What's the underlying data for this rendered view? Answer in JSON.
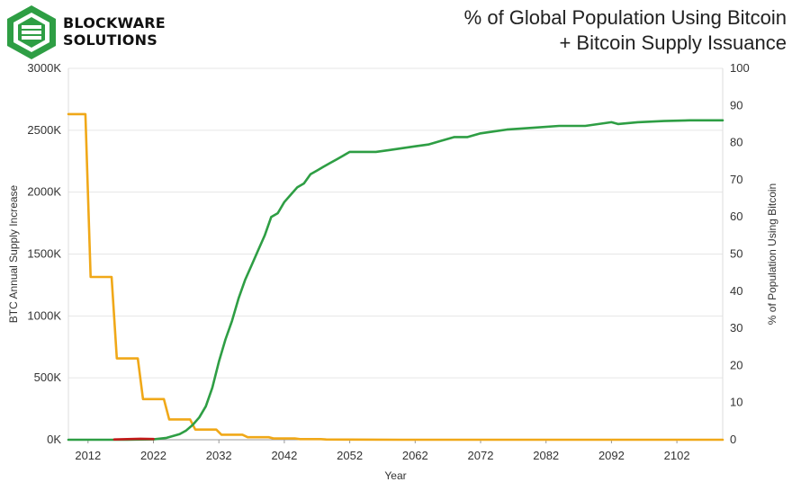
{
  "brand": {
    "line1": "BLOCKWARE",
    "line2": "SOLUTIONS",
    "mark_color": "#2e9e44"
  },
  "header": {
    "title_line1": "% of Global Population Using Bitcoin",
    "title_line2": "+ Bitcoin Supply Issuance"
  },
  "chart_data": {
    "type": "line",
    "title": "% of Global Population Using Bitcoin + Bitcoin Supply Issuance",
    "xlabel": "Year",
    "ylabel_left": "BTC Annual Supply Increase",
    "ylabel_right": "% of Population Using Bitcoin",
    "xlim": [
      2009,
      2109
    ],
    "ylim_left": [
      0,
      3000
    ],
    "ylim_right": [
      0,
      100
    ],
    "x_ticks": [
      "2012",
      "2022",
      "2032",
      "2042",
      "2052",
      "2062",
      "2072",
      "2082",
      "2092",
      "2102"
    ],
    "y_left_ticks": [
      "0K",
      "500K",
      "1000K",
      "1500K",
      "2000K",
      "2500K",
      "3000K"
    ],
    "y_right_ticks": [
      "0",
      "10",
      "20",
      "30",
      "40",
      "50",
      "60",
      "70",
      "80",
      "90",
      "100"
    ],
    "grid": "horizontal",
    "series": [
      {
        "axis": "left",
        "color": "#f0a818",
        "x": [
          2009,
          2011.6,
          2012.4,
          2015.6,
          2016.4,
          2019.6,
          2020.4,
          2023.6,
          2024.4,
          2027.6,
          2028.4,
          2031.6,
          2032.4,
          2035.6,
          2036.4,
          2039.6,
          2040.4,
          2043.6,
          2044.4,
          2047.6,
          2048.4,
          2052,
          2060,
          2109
        ],
        "values": [
          2630,
          2630,
          1315,
          1315,
          657,
          657,
          328,
          328,
          164,
          164,
          82,
          82,
          41,
          41,
          20,
          20,
          10,
          10,
          5,
          5,
          2.5,
          1.2,
          0.3,
          0
        ]
      },
      {
        "axis": "right",
        "color": "#2e9e44",
        "x": [
          2009,
          2018,
          2022,
          2024,
          2026,
          2027,
          2028,
          2029,
          2030,
          2031,
          2032,
          2033,
          2034,
          2035,
          2036,
          2037,
          2038,
          2039,
          2040,
          2041,
          2042,
          2043,
          2044,
          2045,
          2046,
          2047,
          2048,
          2049,
          2050,
          2051,
          2052,
          2054,
          2056,
          2058,
          2060,
          2062,
          2064,
          2066,
          2068,
          2070,
          2072,
          2074,
          2076,
          2080,
          2084,
          2088,
          2092,
          2093,
          2096,
          2100,
          2104,
          2109
        ],
        "values": [
          0,
          0,
          0.1,
          0.5,
          1.5,
          2.5,
          4,
          6,
          9,
          14,
          21,
          27,
          32,
          38,
          43,
          47,
          51,
          55,
          60,
          61,
          64,
          66,
          68,
          69,
          71.5,
          72.5,
          73.5,
          74.5,
          75.5,
          76.5,
          77.5,
          77.5,
          77.5,
          78,
          78.5,
          79,
          79.5,
          80.5,
          81.5,
          81.5,
          82.5,
          83,
          83.5,
          84,
          84.5,
          84.5,
          85.5,
          85,
          85.5,
          85.8,
          86,
          86
        ]
      },
      {
        "axis": "left",
        "color": "#c41a1a",
        "x": [
          2016,
          2018,
          2020,
          2022
        ],
        "values": [
          2,
          5,
          8,
          6
        ]
      }
    ]
  }
}
